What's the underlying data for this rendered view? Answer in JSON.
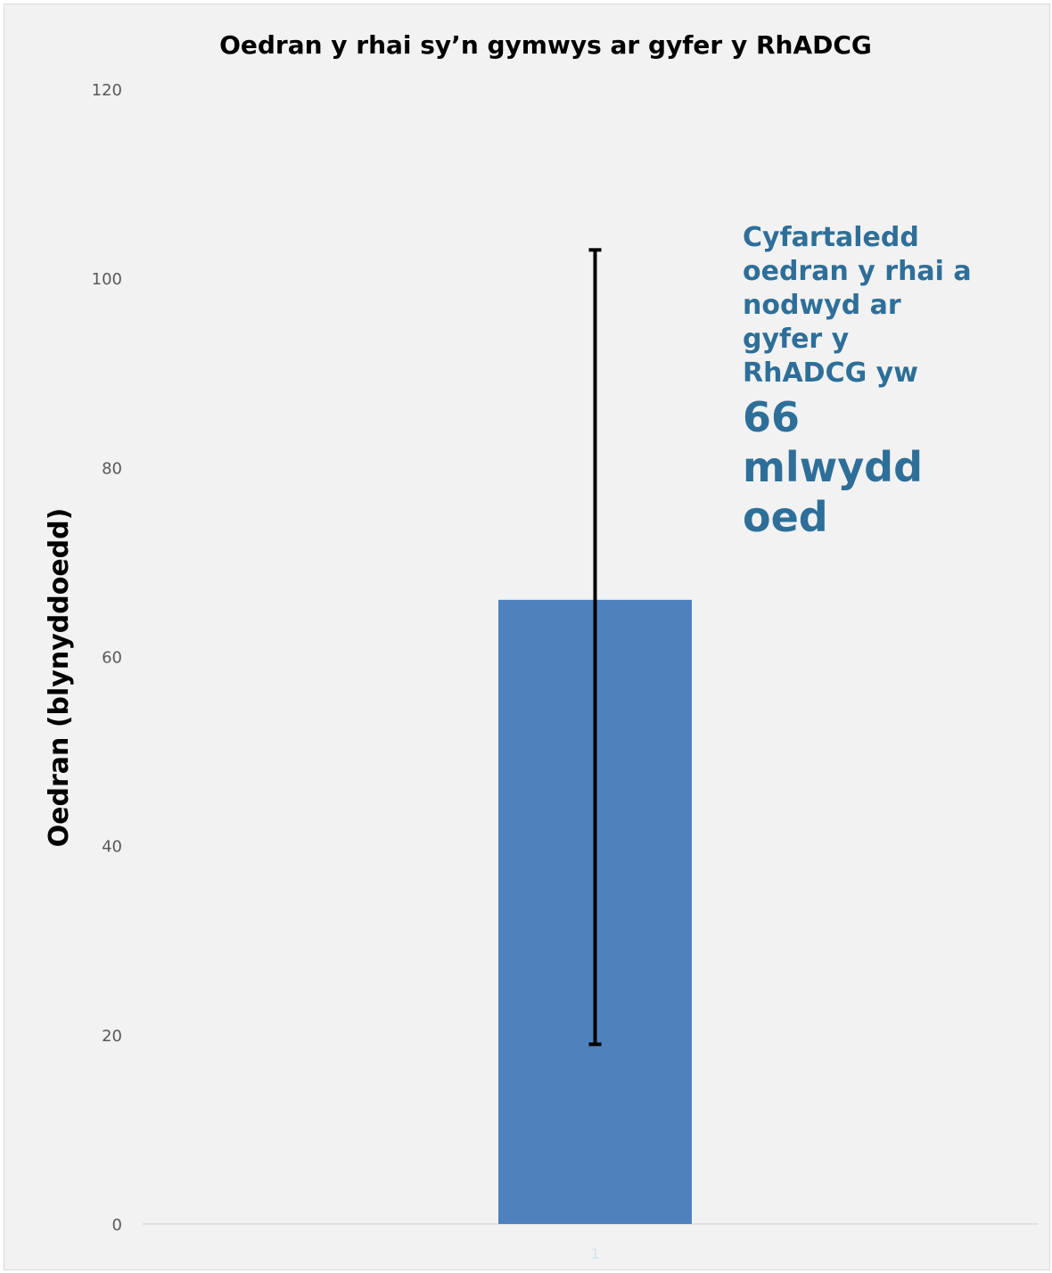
{
  "chart_data": {
    "type": "bar",
    "title": "Oedran y rhai sy’n gymwys ar gyfer y RhADCG",
    "ylabel": "Oedran (blynyddoedd)",
    "xlabel": "",
    "categories": [
      "1"
    ],
    "values": [
      66
    ],
    "error_bars": [
      {
        "low": 19,
        "high": 103
      }
    ],
    "ylim": [
      0,
      120
    ],
    "yticks": [
      0,
      20,
      40,
      60,
      80,
      100,
      120
    ],
    "grid": false,
    "bar_color": "#4f81bd",
    "error_bar_color": "#000000",
    "annotation": {
      "text_small": "Cyfartaledd\noedran y rhai a\nnodwyd ar\ngyfer y\nRhADCG yw",
      "text_big": "66\nmlwydd\noed",
      "color": "#2e6f99"
    }
  }
}
